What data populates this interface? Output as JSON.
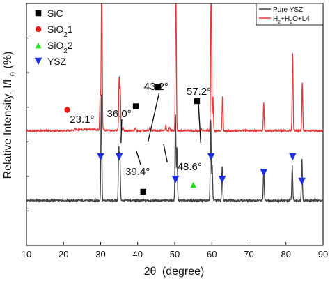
{
  "chart_data": {
    "type": "line",
    "xlabel_prefix": "2θ",
    "xlabel_suffix": "(degree)",
    "ylabel_main": "Relative Intensity, I/I",
    "ylabel_sub": "0",
    "ylabel_suffix": " (%)",
    "xlim": [
      10,
      90
    ],
    "x_ticks": [
      10,
      20,
      30,
      40,
      50,
      60,
      70,
      80,
      90
    ],
    "y_ticks_labeled": false,
    "grid": false,
    "legend_position": "top-right",
    "series": [
      {
        "name": "Pure YSZ",
        "color": "#444444",
        "baseline": 5,
        "peaks": [
          {
            "x": 30.2,
            "h": 62
          },
          {
            "x": 34.9,
            "h": 30
          },
          {
            "x": 35.2,
            "h": 26
          },
          {
            "x": 50.2,
            "h": 50
          },
          {
            "x": 50.6,
            "h": 30
          },
          {
            "x": 59.7,
            "h": 48
          },
          {
            "x": 60.1,
            "h": 20
          },
          {
            "x": 62.8,
            "h": 20
          },
          {
            "x": 74.0,
            "h": 18
          },
          {
            "x": 81.7,
            "h": 20
          },
          {
            "x": 84.3,
            "h": 25
          }
        ]
      },
      {
        "name": "H2+H2O+L4",
        "color": "#e23b3b",
        "baseline": 45,
        "peaks": [
          {
            "x": 23.1,
            "h": 0.8
          },
          {
            "x": 29.9,
            "h": 22
          },
          {
            "x": 30.3,
            "h": 100
          },
          {
            "x": 35.0,
            "h": 30
          },
          {
            "x": 35.3,
            "h": 24
          },
          {
            "x": 36.0,
            "h": 2
          },
          {
            "x": 39.4,
            "h": 1.5
          },
          {
            "x": 43.2,
            "h": 1
          },
          {
            "x": 47.6,
            "h": 3
          },
          {
            "x": 48.6,
            "h": 2
          },
          {
            "x": 50.3,
            "h": 100
          },
          {
            "x": 57.2,
            "h": 1
          },
          {
            "x": 59.8,
            "h": 100
          },
          {
            "x": 60.3,
            "h": 20
          },
          {
            "x": 62.9,
            "h": 20
          },
          {
            "x": 74.0,
            "h": 16
          },
          {
            "x": 81.8,
            "h": 45
          },
          {
            "x": 84.4,
            "h": 28
          }
        ]
      }
    ],
    "legend_lines": [
      {
        "label": "Pure YSZ",
        "color": "#444444"
      },
      {
        "label_parts": [
          "H",
          "2",
          "+H",
          "2",
          "O+L4"
        ],
        "color": "#e23b3b"
      }
    ],
    "marker_legend": [
      {
        "label_parts": [
          "SiC"
        ],
        "shape": "square",
        "color": "#000000"
      },
      {
        "label_parts": [
          "SiO",
          "2",
          "1"
        ],
        "shape": "circle",
        "color": "#e8201c"
      },
      {
        "label_parts": [
          "SiO",
          "2",
          "2"
        ],
        "shape": "triangle-up",
        "color": "#1ee21e"
      },
      {
        "label_parts": [
          "YSZ"
        ],
        "shape": "triangle-down",
        "color": "#1d2fe0"
      }
    ],
    "annotations": [
      {
        "text": "23.1°",
        "x": 23.1
      },
      {
        "text": "36.0°",
        "x": 36.0
      },
      {
        "text": "43.2°",
        "x": 43.2
      },
      {
        "text": "57.2°",
        "x": 57.2
      },
      {
        "text": "39.4°",
        "x": 39.4
      },
      {
        "text": "48.6°",
        "x": 48.6
      }
    ],
    "markers": [
      {
        "shape": "circle",
        "color": "#e8201c",
        "x": 21,
        "y": 57
      },
      {
        "shape": "square",
        "color": "#000000",
        "x": 39.5,
        "y": 59
      },
      {
        "shape": "square",
        "color": "#000000",
        "x": 45.5,
        "y": 70
      },
      {
        "shape": "square",
        "color": "#000000",
        "x": 56,
        "y": 62
      },
      {
        "shape": "square",
        "color": "#000000",
        "x": 41.5,
        "y": 10
      },
      {
        "shape": "triangle-up",
        "color": "#1ee21e",
        "x": 55,
        "y": 14
      },
      {
        "shape": "triangle-down",
        "color": "#1d2fe0",
        "x": 30,
        "y": 30
      },
      {
        "shape": "triangle-down",
        "color": "#1d2fe0",
        "x": 35,
        "y": 30
      },
      {
        "shape": "triangle-down",
        "color": "#1d2fe0",
        "x": 50.2,
        "y": 17
      },
      {
        "shape": "triangle-down",
        "color": "#1d2fe0",
        "x": 59.8,
        "y": 30
      },
      {
        "shape": "triangle-down",
        "color": "#1d2fe0",
        "x": 62.8,
        "y": 17
      },
      {
        "shape": "triangle-down",
        "color": "#1d2fe0",
        "x": 74,
        "y": 21
      },
      {
        "shape": "triangle-down",
        "color": "#1d2fe0",
        "x": 81.8,
        "y": 30
      },
      {
        "shape": "triangle-down",
        "color": "#1d2fe0",
        "x": 84.3,
        "y": 16
      }
    ]
  }
}
